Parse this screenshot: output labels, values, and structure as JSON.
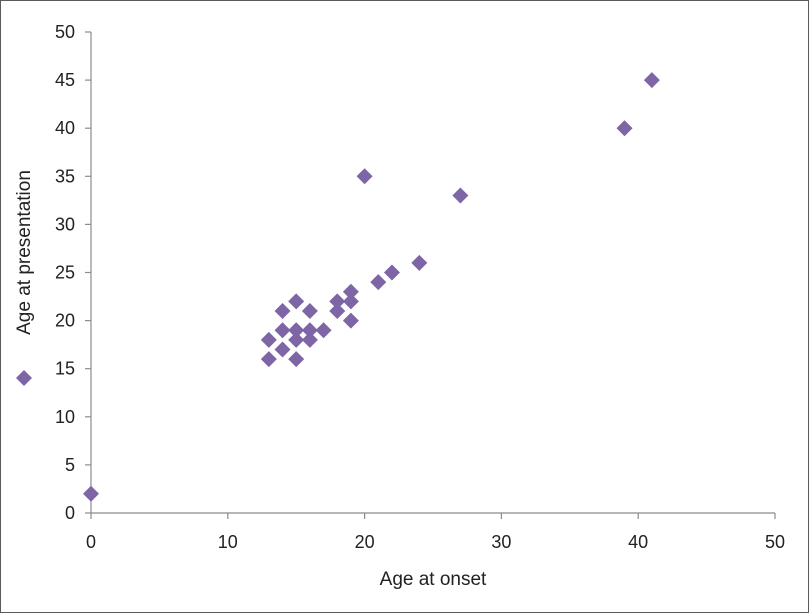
{
  "chart_data": {
    "type": "scatter",
    "title": "",
    "xlabel": "Age at onset",
    "ylabel": "Age at presentation",
    "xlim": [
      0,
      50
    ],
    "ylim": [
      0,
      50
    ],
    "xticks": [
      "0",
      "10",
      "20",
      "30",
      "40",
      "50"
    ],
    "yticks": [
      "0",
      "5",
      "10",
      "15",
      "20",
      "25",
      "30",
      "35",
      "40",
      "45",
      "50"
    ],
    "grid": false,
    "legend": "left",
    "marker": "diamond",
    "marker_color": "#7e65a5",
    "series": [
      {
        "points": [
          [
            0,
            2
          ],
          [
            13,
            16
          ],
          [
            13,
            18
          ],
          [
            14,
            17
          ],
          [
            14,
            19
          ],
          [
            14,
            21
          ],
          [
            15,
            16
          ],
          [
            15,
            18
          ],
          [
            15,
            19
          ],
          [
            15,
            22
          ],
          [
            16,
            18
          ],
          [
            16,
            19
          ],
          [
            16,
            21
          ],
          [
            17,
            19
          ],
          [
            18,
            21
          ],
          [
            18,
            22
          ],
          [
            19,
            20
          ],
          [
            19,
            22
          ],
          [
            19,
            23
          ],
          [
            20,
            35
          ],
          [
            21,
            24
          ],
          [
            22,
            25
          ],
          [
            24,
            26
          ],
          [
            27,
            33
          ],
          [
            39,
            40
          ],
          [
            41,
            45
          ]
        ]
      }
    ]
  }
}
